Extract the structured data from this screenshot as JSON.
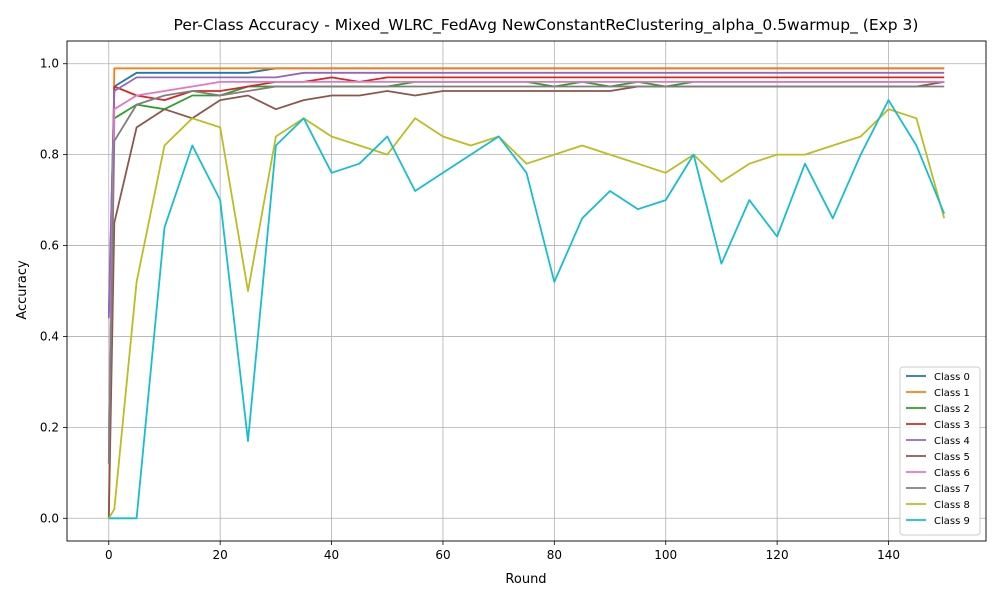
{
  "chart_data": {
    "type": "line",
    "title": "Per-Class Accuracy - Mixed_WLRC_FedAvg NewConstantReClustering_alpha_0.5warmup_ (Exp 3)",
    "xlabel": "Round",
    "ylabel": "Accuracy",
    "xlim": [
      -7.5,
      157.5
    ],
    "ylim": [
      -0.05,
      1.05
    ],
    "xticks": [
      0,
      20,
      40,
      60,
      80,
      100,
      120,
      140
    ],
    "yticks": [
      0.0,
      0.2,
      0.4,
      0.6,
      0.8,
      1.0
    ],
    "xtick_labels": [
      "0",
      "20",
      "40",
      "60",
      "80",
      "100",
      "120",
      "140"
    ],
    "ytick_labels": [
      "0.0",
      "0.2",
      "0.4",
      "0.6",
      "0.8",
      "1.0"
    ],
    "grid": true,
    "legend_position": "lower-right",
    "series_note": "each series sampled every 5 rounds (approximate readings)",
    "x": [
      0,
      1,
      5,
      10,
      15,
      20,
      25,
      30,
      35,
      40,
      45,
      50,
      55,
      60,
      65,
      70,
      75,
      80,
      85,
      90,
      95,
      100,
      105,
      110,
      115,
      120,
      125,
      130,
      135,
      140,
      145,
      150
    ],
    "series": [
      {
        "name": "Class 0",
        "color": "#1f77b4",
        "values": [
          0.45,
          0.95,
          0.98,
          0.98,
          0.98,
          0.98,
          0.98,
          0.99,
          0.99,
          0.99,
          0.99,
          0.99,
          0.99,
          0.99,
          0.99,
          0.99,
          0.99,
          0.99,
          0.99,
          0.99,
          0.99,
          0.99,
          0.99,
          0.99,
          0.99,
          0.99,
          0.99,
          0.99,
          0.99,
          0.99,
          0.99,
          0.99
        ]
      },
      {
        "name": "Class 1",
        "color": "#ff7f0e",
        "values": [
          0.0,
          0.99,
          0.99,
          0.99,
          0.99,
          0.99,
          0.99,
          0.99,
          0.99,
          0.99,
          0.99,
          0.99,
          0.99,
          0.99,
          0.99,
          0.99,
          0.99,
          0.99,
          0.99,
          0.99,
          0.99,
          0.99,
          0.99,
          0.99,
          0.99,
          0.99,
          0.99,
          0.99,
          0.99,
          0.99,
          0.99,
          0.99
        ]
      },
      {
        "name": "Class 2",
        "color": "#2ca02c",
        "values": [
          0.18,
          0.88,
          0.91,
          0.9,
          0.93,
          0.93,
          0.95,
          0.95,
          0.95,
          0.95,
          0.95,
          0.95,
          0.96,
          0.96,
          0.96,
          0.96,
          0.96,
          0.95,
          0.96,
          0.95,
          0.96,
          0.95,
          0.96,
          0.96,
          0.96,
          0.96,
          0.96,
          0.96,
          0.96,
          0.96,
          0.96,
          0.96
        ]
      },
      {
        "name": "Class 3",
        "color": "#d62728",
        "values": [
          0.12,
          0.95,
          0.93,
          0.92,
          0.94,
          0.94,
          0.95,
          0.96,
          0.96,
          0.97,
          0.96,
          0.97,
          0.97,
          0.97,
          0.97,
          0.97,
          0.97,
          0.97,
          0.97,
          0.97,
          0.97,
          0.97,
          0.97,
          0.97,
          0.97,
          0.97,
          0.97,
          0.97,
          0.97,
          0.97,
          0.97,
          0.97
        ]
      },
      {
        "name": "Class 4",
        "color": "#9467bd",
        "values": [
          0.44,
          0.94,
          0.97,
          0.97,
          0.97,
          0.97,
          0.97,
          0.97,
          0.98,
          0.98,
          0.98,
          0.98,
          0.98,
          0.98,
          0.98,
          0.98,
          0.98,
          0.98,
          0.98,
          0.98,
          0.98,
          0.98,
          0.98,
          0.98,
          0.98,
          0.98,
          0.98,
          0.98,
          0.98,
          0.98,
          0.98,
          0.98
        ]
      },
      {
        "name": "Class 5",
        "color": "#8c564b",
        "values": [
          0.0,
          0.65,
          0.86,
          0.9,
          0.88,
          0.92,
          0.93,
          0.9,
          0.92,
          0.93,
          0.93,
          0.94,
          0.93,
          0.94,
          0.94,
          0.94,
          0.94,
          0.94,
          0.94,
          0.94,
          0.95,
          0.95,
          0.95,
          0.95,
          0.95,
          0.95,
          0.95,
          0.95,
          0.95,
          0.95,
          0.95,
          0.96
        ]
      },
      {
        "name": "Class 6",
        "color": "#e377c2",
        "values": [
          0.17,
          0.9,
          0.93,
          0.94,
          0.95,
          0.96,
          0.96,
          0.96,
          0.96,
          0.96,
          0.96,
          0.96,
          0.96,
          0.96,
          0.96,
          0.96,
          0.96,
          0.96,
          0.96,
          0.96,
          0.96,
          0.96,
          0.96,
          0.96,
          0.96,
          0.96,
          0.96,
          0.96,
          0.96,
          0.96,
          0.96,
          0.96
        ]
      },
      {
        "name": "Class 7",
        "color": "#7f7f7f",
        "values": [
          0.12,
          0.83,
          0.91,
          0.93,
          0.94,
          0.93,
          0.94,
          0.95,
          0.95,
          0.95,
          0.95,
          0.95,
          0.95,
          0.95,
          0.95,
          0.95,
          0.95,
          0.95,
          0.95,
          0.95,
          0.95,
          0.95,
          0.95,
          0.95,
          0.95,
          0.95,
          0.95,
          0.95,
          0.95,
          0.95,
          0.95,
          0.95
        ]
      },
      {
        "name": "Class 8",
        "color": "#bcbd22",
        "values": [
          0.0,
          0.02,
          0.52,
          0.82,
          0.88,
          0.86,
          0.5,
          0.84,
          0.88,
          0.84,
          0.82,
          0.8,
          0.88,
          0.84,
          0.82,
          0.84,
          0.78,
          0.8,
          0.82,
          0.8,
          0.78,
          0.76,
          0.8,
          0.74,
          0.78,
          0.8,
          0.8,
          0.82,
          0.84,
          0.9,
          0.88,
          0.66
        ]
      },
      {
        "name": "Class 9",
        "color": "#17becf",
        "values": [
          0.0,
          0.0,
          0.0,
          0.64,
          0.82,
          0.7,
          0.17,
          0.82,
          0.88,
          0.76,
          0.78,
          0.84,
          0.72,
          0.76,
          0.8,
          0.84,
          0.76,
          0.52,
          0.66,
          0.72,
          0.68,
          0.7,
          0.8,
          0.56,
          0.7,
          0.62,
          0.78,
          0.66,
          0.8,
          0.92,
          0.82,
          0.67
        ]
      }
    ]
  }
}
